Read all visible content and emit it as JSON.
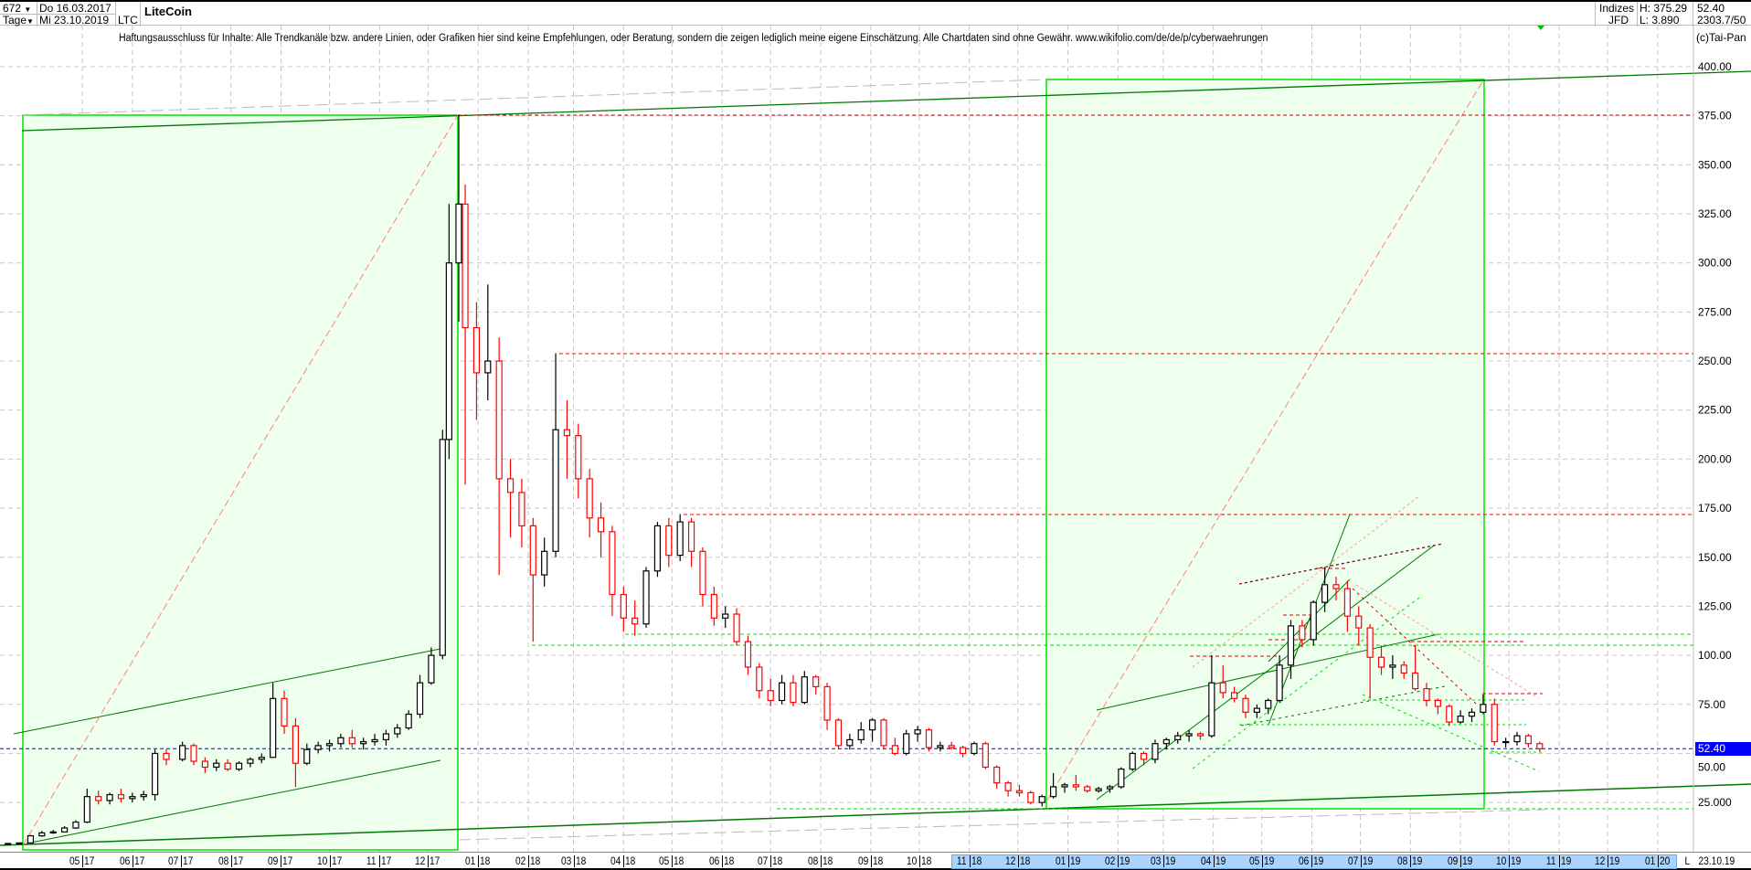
{
  "header": {
    "bars_count": "672",
    "period": "Tage",
    "start_date": "Do 16.03.2017",
    "end_date": "Mi 23.10.2019",
    "symbol": "LTC",
    "title": "LiteCoin",
    "group": "Indizes",
    "source": "JFD",
    "high": "H: 375.29",
    "low": "L: 3.890",
    "last": "52.40",
    "info": "2303.7/50"
  },
  "disclaimer": "Haftungsausschluss für Inhalte: Alle Trendkanäle bzw. andere Linien, oder Grafiken hier sind keine Empfehlungen, oder Beratung, sondern die zeigen lediglich meine eigene Einschätzung. Alle Chartdaten sind ohne Gewähr.  www.wikifolio.com/de/de/p/cyberwaehrungen",
  "copyright": "(c)Tai-Pan",
  "colors": {
    "up": "#000000",
    "down": "#ff0000",
    "last_price": "#0000ff",
    "box_fill": "#eeffee",
    "box_border": "#00e000",
    "trend": "#007700"
  },
  "chart_data": {
    "type": "candlestick",
    "title": "LiteCoin",
    "ylim": [
      0,
      400
    ],
    "y_ticks": [
      "400.00",
      "375.00",
      "350.00",
      "325.00",
      "300.00",
      "275.00",
      "250.00",
      "225.00",
      "200.00",
      "175.00",
      "150.00",
      "125.00",
      "100.00",
      "75.00",
      "50.00",
      "25.000"
    ],
    "x_ticks": [
      {
        "m": "05",
        "y": "17"
      },
      {
        "m": "06",
        "y": "17"
      },
      {
        "m": "07",
        "y": "17"
      },
      {
        "m": "08",
        "y": "17"
      },
      {
        "m": "09",
        "y": "17"
      },
      {
        "m": "10",
        "y": "17"
      },
      {
        "m": "11",
        "y": "17"
      },
      {
        "m": "12",
        "y": "17"
      },
      {
        "m": "01",
        "y": "18"
      },
      {
        "m": "02",
        "y": "18"
      },
      {
        "m": "03",
        "y": "18"
      },
      {
        "m": "04",
        "y": "18"
      },
      {
        "m": "05",
        "y": "18"
      },
      {
        "m": "06",
        "y": "18"
      },
      {
        "m": "07",
        "y": "18"
      },
      {
        "m": "08",
        "y": "18"
      },
      {
        "m": "09",
        "y": "18"
      },
      {
        "m": "10",
        "y": "18"
      },
      {
        "m": "11",
        "y": "18"
      },
      {
        "m": "12",
        "y": "18"
      },
      {
        "m": "01",
        "y": "19"
      },
      {
        "m": "02",
        "y": "19"
      },
      {
        "m": "03",
        "y": "19"
      },
      {
        "m": "04",
        "y": "19"
      },
      {
        "m": "05",
        "y": "19"
      },
      {
        "m": "06",
        "y": "19"
      },
      {
        "m": "07",
        "y": "19"
      },
      {
        "m": "08",
        "y": "19"
      },
      {
        "m": "09",
        "y": "19"
      },
      {
        "m": "10",
        "y": "19"
      },
      {
        "m": "11",
        "y": "19"
      },
      {
        "m": "12",
        "y": "19"
      },
      {
        "m": "01",
        "y": "20"
      }
    ],
    "x_end_marker": "L",
    "x_end_date": "23.10.19",
    "last_price_label": "52.40",
    "last_price": 52.4,
    "horizontal_levels": {
      "red": [
        375.29,
        253.9,
        172
      ],
      "green": [
        110.7,
        105,
        22.5
      ]
    },
    "grid": true,
    "candles_columns": [
      "date",
      "open",
      "high",
      "low",
      "close"
    ],
    "candles": [
      [
        "2017-03-16",
        3.9,
        4.3,
        3.8,
        4.1
      ],
      [
        "2017-03-23",
        4.1,
        4.6,
        3.9,
        4.4
      ],
      [
        "2017-03-30",
        4.4,
        8.5,
        4.2,
        8.0
      ],
      [
        "2017-04-06",
        8.0,
        10.5,
        7.5,
        9.5
      ],
      [
        "2017-04-13",
        9.5,
        11,
        9,
        10
      ],
      [
        "2017-04-20",
        10,
        13,
        9.8,
        12
      ],
      [
        "2017-04-27",
        12,
        16,
        11.5,
        15
      ],
      [
        "2017-05-04",
        15,
        32,
        14.5,
        28
      ],
      [
        "2017-05-11",
        28,
        31,
        24,
        26
      ],
      [
        "2017-05-18",
        26,
        30,
        24,
        29
      ],
      [
        "2017-05-25",
        29,
        32,
        25,
        27
      ],
      [
        "2017-06-01",
        27,
        30,
        25,
        28
      ],
      [
        "2017-06-08",
        28,
        31,
        26,
        29
      ],
      [
        "2017-06-15",
        29,
        52,
        26,
        50
      ],
      [
        "2017-06-22",
        50,
        52,
        44,
        47
      ],
      [
        "2017-07-02",
        47,
        56,
        46,
        54
      ],
      [
        "2017-07-09",
        54,
        55,
        44,
        46
      ],
      [
        "2017-07-16",
        46,
        48,
        40,
        43
      ],
      [
        "2017-07-23",
        43,
        47,
        41,
        45
      ],
      [
        "2017-07-30",
        45,
        47,
        41,
        42
      ],
      [
        "2017-08-06",
        42,
        46,
        41,
        45
      ],
      [
        "2017-08-13",
        45,
        48,
        43,
        47
      ],
      [
        "2017-08-20",
        47,
        50,
        45,
        48
      ],
      [
        "2017-08-27",
        48,
        86,
        48,
        78
      ],
      [
        "2017-09-03",
        78,
        82,
        60,
        64
      ],
      [
        "2017-09-10",
        64,
        68,
        33,
        45
      ],
      [
        "2017-09-17",
        45,
        55,
        44,
        52
      ],
      [
        "2017-09-24",
        52,
        56,
        50,
        54
      ],
      [
        "2017-10-01",
        54,
        57,
        51,
        55
      ],
      [
        "2017-10-08",
        55,
        60,
        53,
        58
      ],
      [
        "2017-10-15",
        58,
        62,
        53,
        55
      ],
      [
        "2017-10-22",
        55,
        58,
        52,
        56
      ],
      [
        "2017-10-29",
        56,
        60,
        54,
        57
      ],
      [
        "2017-11-05",
        57,
        62,
        54,
        60
      ],
      [
        "2017-11-12",
        60,
        65,
        58,
        63
      ],
      [
        "2017-11-19",
        63,
        72,
        62,
        70
      ],
      [
        "2017-11-26",
        70,
        90,
        68,
        86
      ],
      [
        "2017-12-03",
        86,
        104,
        85,
        100
      ],
      [
        "2017-12-10",
        100,
        215,
        98,
        210
      ],
      [
        "2017-12-14",
        210,
        330,
        200,
        300
      ],
      [
        "2017-12-20",
        300,
        375.29,
        270,
        330
      ],
      [
        "2017-12-24",
        330,
        340,
        187,
        267
      ],
      [
        "2017-12-31",
        267,
        280,
        220,
        244
      ],
      [
        "2018-01-07",
        244,
        289,
        230,
        250
      ],
      [
        "2018-01-14",
        250,
        262,
        141,
        190
      ],
      [
        "2018-01-21",
        190,
        200,
        160,
        183
      ],
      [
        "2018-01-28",
        183,
        190,
        155,
        166
      ],
      [
        "2018-02-04",
        166,
        170,
        107,
        141
      ],
      [
        "2018-02-11",
        141,
        160,
        135,
        153
      ],
      [
        "2018-02-18",
        153,
        254,
        150,
        215
      ],
      [
        "2018-02-25",
        215,
        230,
        190,
        212
      ],
      [
        "2018-03-04",
        212,
        218,
        180,
        190
      ],
      [
        "2018-03-11",
        190,
        195,
        160,
        170
      ],
      [
        "2018-03-18",
        170,
        178,
        150,
        163
      ],
      [
        "2018-03-25",
        163,
        166,
        120,
        131
      ],
      [
        "2018-04-01",
        131,
        135,
        112,
        119
      ],
      [
        "2018-04-08",
        119,
        128,
        110,
        116
      ],
      [
        "2018-04-15",
        116,
        145,
        114,
        143
      ],
      [
        "2018-04-22",
        143,
        168,
        140,
        166
      ],
      [
        "2018-04-29",
        166,
        170,
        145,
        151
      ],
      [
        "2018-05-06",
        151,
        172,
        148,
        168
      ],
      [
        "2018-05-13",
        168,
        170,
        145,
        153
      ],
      [
        "2018-05-20",
        153,
        155,
        125,
        131
      ],
      [
        "2018-05-27",
        131,
        135,
        115,
        119
      ],
      [
        "2018-06-03",
        119,
        125,
        114,
        121
      ],
      [
        "2018-06-10",
        121,
        124,
        105,
        107
      ],
      [
        "2018-06-17",
        107,
        110,
        90,
        94
      ],
      [
        "2018-06-24",
        94,
        96,
        78,
        82
      ],
      [
        "2018-07-01",
        82,
        88,
        74,
        77
      ],
      [
        "2018-07-08",
        77,
        90,
        75,
        86
      ],
      [
        "2018-07-15",
        86,
        90,
        74,
        76
      ],
      [
        "2018-07-22",
        76,
        92,
        75,
        89
      ],
      [
        "2018-07-29",
        89,
        90,
        80,
        84
      ],
      [
        "2018-08-05",
        84,
        86,
        62,
        67
      ],
      [
        "2018-08-12",
        67,
        68,
        52,
        54
      ],
      [
        "2018-08-19",
        54,
        60,
        52,
        57
      ],
      [
        "2018-08-26",
        57,
        66,
        55,
        62
      ],
      [
        "2018-09-02",
        62,
        68,
        56,
        67
      ],
      [
        "2018-09-09",
        67,
        68,
        52,
        54
      ],
      [
        "2018-09-16",
        54,
        58,
        49,
        50
      ],
      [
        "2018-09-23",
        50,
        62,
        49,
        60
      ],
      [
        "2018-09-30",
        60,
        64,
        56,
        62
      ],
      [
        "2018-10-07",
        62,
        63,
        51,
        53
      ],
      [
        "2018-10-14",
        53,
        56,
        51,
        54
      ],
      [
        "2018-10-21",
        54,
        56,
        52,
        53
      ],
      [
        "2018-10-28",
        53,
        54,
        48,
        50
      ],
      [
        "2018-11-04",
        50,
        56,
        49,
        55
      ],
      [
        "2018-11-11",
        55,
        56,
        42,
        43
      ],
      [
        "2018-11-18",
        43,
        44,
        32,
        35
      ],
      [
        "2018-11-25",
        35,
        36,
        28,
        31
      ],
      [
        "2018-12-02",
        31,
        34,
        28,
        30
      ],
      [
        "2018-12-09",
        30,
        31,
        24,
        25
      ],
      [
        "2018-12-16",
        25,
        29,
        23,
        28
      ],
      [
        "2018-12-23",
        28,
        40,
        27,
        33
      ],
      [
        "2018-12-30",
        33,
        35,
        30,
        34
      ],
      [
        "2019-01-06",
        34,
        39,
        31,
        33
      ],
      [
        "2019-01-13",
        33,
        34,
        30,
        31
      ],
      [
        "2019-01-20",
        31,
        33,
        30,
        32
      ],
      [
        "2019-01-27",
        32,
        34,
        30,
        33
      ],
      [
        "2019-02-03",
        33,
        43,
        32,
        42
      ],
      [
        "2019-02-10",
        42,
        51,
        41,
        50
      ],
      [
        "2019-02-17",
        50,
        51,
        44,
        47
      ],
      [
        "2019-02-24",
        47,
        57,
        45,
        55
      ],
      [
        "2019-03-03",
        55,
        58,
        52,
        57
      ],
      [
        "2019-03-10",
        57,
        61,
        55,
        59
      ],
      [
        "2019-03-17",
        59,
        62,
        56,
        60
      ],
      [
        "2019-03-24",
        60,
        61,
        57,
        59
      ],
      [
        "2019-03-31",
        59,
        100,
        58,
        86
      ],
      [
        "2019-04-07",
        86,
        95,
        78,
        81
      ],
      [
        "2019-04-14",
        81,
        84,
        76,
        78
      ],
      [
        "2019-04-21",
        78,
        80,
        68,
        71
      ],
      [
        "2019-04-28",
        71,
        75,
        68,
        73
      ],
      [
        "2019-05-05",
        73,
        78,
        70,
        77
      ],
      [
        "2019-05-12",
        77,
        100,
        76,
        95
      ],
      [
        "2019-05-19",
        95,
        118,
        88,
        115
      ],
      [
        "2019-05-26",
        115,
        118,
        104,
        108
      ],
      [
        "2019-06-02",
        108,
        128,
        105,
        127
      ],
      [
        "2019-06-09",
        127,
        145,
        122,
        136
      ],
      [
        "2019-06-16",
        136,
        140,
        128,
        134
      ],
      [
        "2019-06-23",
        134,
        138,
        112,
        120
      ],
      [
        "2019-06-30",
        120,
        125,
        105,
        114
      ],
      [
        "2019-07-07",
        114,
        116,
        78,
        99
      ],
      [
        "2019-07-14",
        99,
        105,
        90,
        94
      ],
      [
        "2019-07-21",
        94,
        100,
        88,
        95
      ],
      [
        "2019-07-28",
        95,
        97,
        88,
        91
      ],
      [
        "2019-08-04",
        91,
        105,
        82,
        83
      ],
      [
        "2019-08-11",
        83,
        86,
        74,
        77
      ],
      [
        "2019-08-18",
        77,
        78,
        70,
        74
      ],
      [
        "2019-08-25",
        74,
        75,
        64,
        66
      ],
      [
        "2019-09-01",
        66,
        72,
        65,
        69
      ],
      [
        "2019-09-08",
        69,
        73,
        66,
        71
      ],
      [
        "2019-09-15",
        71,
        80,
        70,
        75
      ],
      [
        "2019-09-22",
        75,
        78,
        54,
        56
      ],
      [
        "2019-09-29",
        56,
        58,
        53,
        56
      ],
      [
        "2019-10-06",
        56,
        61,
        54,
        59
      ],
      [
        "2019-10-13",
        59,
        60,
        53,
        55
      ],
      [
        "2019-10-20",
        55,
        56,
        51,
        52.4
      ]
    ]
  }
}
